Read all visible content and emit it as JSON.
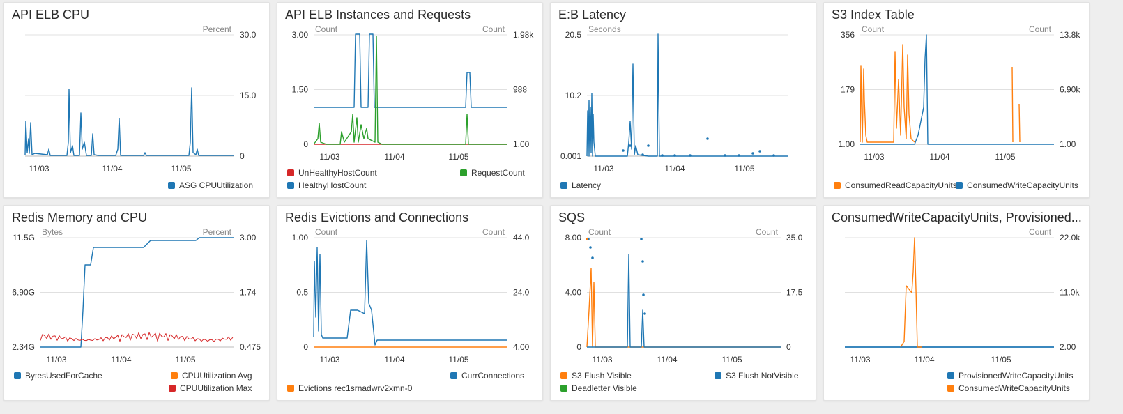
{
  "colors": {
    "blue": "#1f77b4",
    "orange": "#ff7f0e",
    "green": "#2ca02c",
    "red": "#d62728",
    "grid": "#e0e0e0",
    "axis": "#bbbbbb"
  },
  "panels": [
    {
      "title": "API ELB CPU",
      "left_axis": {
        "label": "",
        "ticks": []
      },
      "right_axis": {
        "label": "Percent",
        "ticks": [
          "30.0",
          "15.0",
          "0"
        ]
      },
      "x_ticks": [
        "11/03",
        "11/04",
        "11/05"
      ],
      "legend": [
        {
          "label": "ASG CPUUtilization",
          "color": "#1f77b4",
          "pos": "bottom-right"
        }
      ]
    },
    {
      "title": "API ELB Instances and Requests",
      "left_axis": {
        "label": "Count",
        "ticks": [
          "3.00",
          "1.50",
          "0"
        ]
      },
      "right_axis": {
        "label": "Count",
        "ticks": [
          "1.98k",
          "988",
          "1.00"
        ]
      },
      "x_ticks": [
        "11/03",
        "11/04",
        "11/05"
      ],
      "legend": [
        {
          "label": "UnHealthyHostCount",
          "color": "#d62728",
          "pos": "left"
        },
        {
          "label": "RequestCount",
          "color": "#2ca02c",
          "pos": "right"
        },
        {
          "label": "HealthyHostCount",
          "color": "#1f77b4",
          "pos": "left"
        }
      ]
    },
    {
      "title": "E:B Latency",
      "left_axis": {
        "label": "Seconds",
        "ticks": [
          "20.5",
          "10.2",
          "0.001"
        ]
      },
      "right_axis": {
        "label": "",
        "ticks": []
      },
      "x_ticks": [
        "11/03",
        "11/04",
        "11/05"
      ],
      "legend": [
        {
          "label": "Latency",
          "color": "#1f77b4",
          "pos": "left"
        }
      ]
    },
    {
      "title": "S3 Index Table",
      "left_axis": {
        "label": "Count",
        "ticks": [
          "356",
          "179",
          "1.00"
        ]
      },
      "right_axis": {
        "label": "Count",
        "ticks": [
          "13.8k",
          "6.90k",
          "1.00"
        ]
      },
      "x_ticks": [
        "11/03",
        "11/04",
        "11/05"
      ],
      "legend": [
        {
          "label": "ConsumedReadCapacityUnits",
          "color": "#ff7f0e",
          "pos": "left"
        },
        {
          "label": "ConsumedWriteCapacityUnits",
          "color": "#1f77b4",
          "pos": "left"
        }
      ]
    },
    {
      "title": "Redis Memory and CPU",
      "left_axis": {
        "label": "Bytes",
        "ticks": [
          "11.5G",
          "6.90G",
          "2.34G"
        ]
      },
      "right_axis": {
        "label": "Percent",
        "ticks": [
          "3.00",
          "1.74",
          "0.475"
        ]
      },
      "x_ticks": [
        "11/03",
        "11/04",
        "11/05"
      ],
      "legend": [
        {
          "label": "BytesUsedForCache",
          "color": "#1f77b4",
          "pos": "left"
        },
        {
          "label": "CPUUtilization Avg",
          "color": "#ff7f0e",
          "pos": "right"
        },
        {
          "label": "CPUUtilization Max",
          "color": "#d62728",
          "pos": "right"
        }
      ]
    },
    {
      "title": "Redis Evictions and Connections",
      "left_axis": {
        "label": "Count",
        "ticks": [
          "1.00",
          "0.5",
          "0"
        ]
      },
      "right_axis": {
        "label": "Count",
        "ticks": [
          "44.0",
          "24.0",
          "4.00"
        ]
      },
      "x_ticks": [
        "11/03",
        "11/04",
        "11/05"
      ],
      "legend": [
        {
          "label": "CurrConnections",
          "color": "#1f77b4",
          "pos": "right"
        },
        {
          "label": "Evictions rec1srnadwrv2xmn-0",
          "color": "#ff7f0e",
          "pos": "left"
        }
      ]
    },
    {
      "title": "SQS",
      "left_axis": {
        "label": "Count",
        "ticks": [
          "8.00",
          "4.00",
          "0"
        ]
      },
      "right_axis": {
        "label": "Count",
        "ticks": [
          "35.0",
          "17.5",
          "0"
        ]
      },
      "x_ticks": [
        "11/03",
        "11/04",
        "11/05"
      ],
      "legend": [
        {
          "label": "S3 Flush Visible",
          "color": "#ff7f0e",
          "pos": "left"
        },
        {
          "label": "S3 Flush NotVisible",
          "color": "#1f77b4",
          "pos": "right"
        },
        {
          "label": "Deadletter Visible",
          "color": "#2ca02c",
          "pos": "left"
        }
      ]
    },
    {
      "title": "ConsumedWriteCapacityUnits, Provisioned...",
      "left_axis": {
        "label": "",
        "ticks": []
      },
      "right_axis": {
        "label": "Count",
        "ticks": [
          "22.0k",
          "11.0k",
          "2.00"
        ]
      },
      "x_ticks": [
        "11/03",
        "11/04",
        "11/05"
      ],
      "legend": [
        {
          "label": "ProvisionedWriteCapacityUnits",
          "color": "#1f77b4",
          "pos": "right"
        },
        {
          "label": "ConsumedWriteCapacityUnits",
          "color": "#ff7f0e",
          "pos": "right"
        }
      ]
    }
  ]
}
